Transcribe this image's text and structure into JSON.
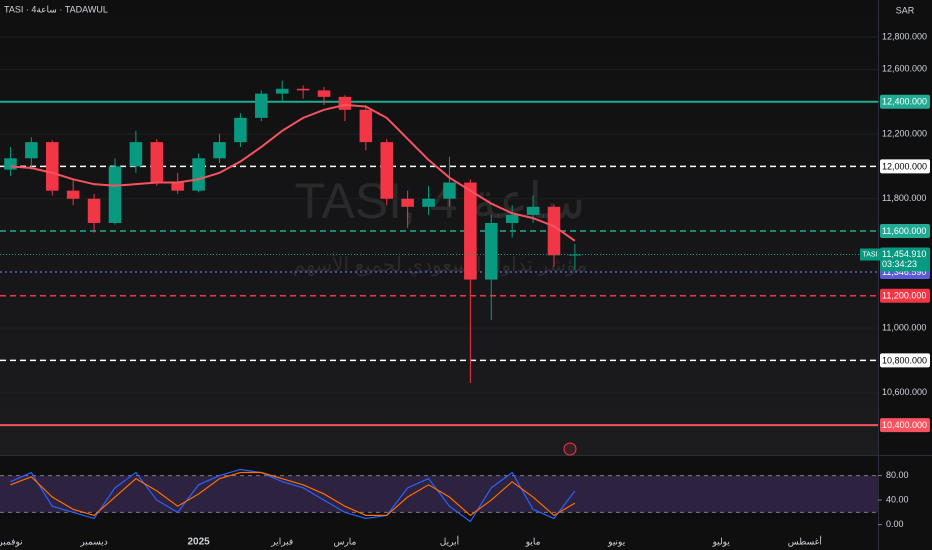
{
  "chart_data": [
    {
      "type": "candlestick",
      "symbol_label": "TASI · 4ساعة · TADAWUL",
      "currency": "SAR",
      "watermark": {
        "title": "TASI, 4 ساعة",
        "subtitle": "مؤشر تداول السعودي لجميع الأسهم"
      },
      "categories": [
        "نوفمبر",
        null,
        null,
        null,
        "ديسمبر",
        null,
        null,
        null,
        null,
        "2025",
        null,
        null,
        null,
        "فبراير",
        null,
        null,
        "مارس",
        null,
        null,
        null,
        null,
        "أبريل",
        null,
        null,
        null,
        "مايو",
        null,
        null,
        null,
        "يونيو",
        null,
        null,
        null,
        null,
        "يوليو",
        null,
        null,
        null,
        "أغسطس",
        null,
        null,
        null
      ],
      "open": [
        11980,
        12050,
        12150,
        11850,
        11800,
        11650,
        12000,
        12150,
        11900,
        11850,
        12050,
        12150,
        12300,
        12450,
        12480,
        12470,
        12430,
        12350,
        12150,
        11800,
        11750,
        11800,
        11900,
        11300,
        11650,
        11700,
        11750,
        11450,
        null,
        null,
        null,
        null,
        null,
        null,
        null,
        null,
        null,
        null,
        null,
        null,
        null,
        null
      ],
      "high": [
        12120,
        12180,
        12160,
        11920,
        11830,
        12050,
        12220,
        12170,
        11960,
        12080,
        12200,
        12330,
        12470,
        12530,
        12500,
        12490,
        12440,
        12380,
        12170,
        11850,
        11880,
        12060,
        11920,
        11700,
        11760,
        11820,
        11760,
        11520,
        null,
        null,
        null,
        null,
        null,
        null,
        null,
        null,
        null,
        null,
        null,
        null,
        null,
        null
      ],
      "low": [
        11940,
        11980,
        11820,
        11760,
        11590,
        11640,
        11960,
        11880,
        11830,
        11840,
        12020,
        12120,
        12280,
        12400,
        12420,
        12380,
        12280,
        12100,
        11760,
        11620,
        11700,
        11750,
        10660,
        11050,
        11560,
        11650,
        11380,
        11360,
        null,
        null,
        null,
        null,
        null,
        null,
        null,
        null,
        null,
        null,
        null,
        null,
        null,
        null
      ],
      "close": [
        12050,
        12150,
        11850,
        11800,
        11650,
        12000,
        12150,
        11900,
        11850,
        12050,
        12150,
        12300,
        12450,
        12480,
        12470,
        12430,
        12350,
        12150,
        11800,
        11750,
        11800,
        11900,
        11300,
        11650,
        11700,
        11750,
        11450,
        11455,
        null,
        null,
        null,
        null,
        null,
        null,
        null,
        null,
        null,
        null,
        null,
        null,
        null,
        null
      ],
      "up_color": "#089981",
      "down_color": "#f23645",
      "moving_average": {
        "color": "#f7525f",
        "values": [
          12000,
          11990,
          11960,
          11920,
          11890,
          11880,
          11890,
          11900,
          11900,
          11920,
          11960,
          12030,
          12120,
          12220,
          12300,
          12350,
          12380,
          12370,
          12300,
          12170,
          12040,
          11930,
          11850,
          11770,
          11710,
          11680,
          11630,
          11540,
          null,
          null,
          null,
          null,
          null,
          null,
          null,
          null,
          null,
          null,
          null,
          null,
          null,
          null
        ]
      },
      "ylim": [
        10215,
        13029
      ],
      "yticks": [
        {
          "value": 12800,
          "label": "12,800.000"
        },
        {
          "value": 12600,
          "label": "12,600.000"
        },
        {
          "value": 12200,
          "label": "12,200.000"
        },
        {
          "value": 11800,
          "label": "11,800.000"
        },
        {
          "value": 11000,
          "label": "11,000.000"
        },
        {
          "value": 10600,
          "label": "10,600.000"
        }
      ],
      "levels": [
        {
          "value": 12400,
          "label": "12,400.000",
          "color": "#22ab94",
          "style": "solid"
        },
        {
          "value": 12000,
          "label": "12,000.000",
          "color": "#ffffff",
          "style": "dashed"
        },
        {
          "value": 11600,
          "label": "11,600.000",
          "color": "#22ab94",
          "style": "dashed"
        },
        {
          "value": 11346.59,
          "label": "11,346.590",
          "color": "#5b5bd6",
          "style": "dotted"
        },
        {
          "value": 11200,
          "label": "11,200.000",
          "color": "#f23645",
          "style": "dashed"
        },
        {
          "value": 10800,
          "label": "10,800.000",
          "color": "#ffffff",
          "style": "dashed"
        },
        {
          "value": 10400,
          "label": "10,400.000",
          "color": "#f7525f",
          "style": "solid"
        }
      ],
      "last_price": {
        "symbol": "TASI",
        "value": 11454.91,
        "value_label": "11,454.910",
        "countdown": "03:34:23",
        "color": "#089981"
      }
    },
    {
      "type": "line",
      "ylim": [
        -17,
        112
      ],
      "yticks": [
        {
          "value": 80,
          "label": "80.00"
        },
        {
          "value": 40,
          "label": "40.00"
        },
        {
          "value": 0,
          "label": "0.00"
        }
      ],
      "band": [
        20,
        80
      ],
      "series": [
        {
          "color": "#2962ff",
          "values": [
            70,
            85,
            30,
            20,
            10,
            60,
            85,
            40,
            20,
            65,
            80,
            90,
            85,
            70,
            60,
            40,
            20,
            10,
            15,
            60,
            75,
            30,
            5,
            60,
            85,
            25,
            10,
            55,
            null,
            null,
            null,
            null,
            null,
            null,
            null,
            null,
            null,
            null,
            null,
            null,
            null,
            null
          ]
        },
        {
          "color": "#ff6d00",
          "values": [
            65,
            78,
            45,
            25,
            15,
            45,
            75,
            55,
            30,
            50,
            75,
            85,
            85,
            75,
            65,
            50,
            30,
            15,
            15,
            45,
            65,
            45,
            15,
            40,
            70,
            45,
            15,
            35,
            null,
            null,
            null,
            null,
            null,
            null,
            null,
            null,
            null,
            null,
            null,
            null,
            null,
            null
          ]
        }
      ]
    }
  ]
}
